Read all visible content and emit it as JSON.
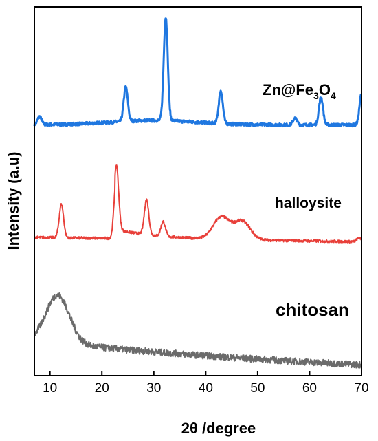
{
  "chart_data": {
    "type": "line",
    "title": "",
    "xlabel": "2θ /degree",
    "ylabel": "Intensity (a.u)",
    "xlim": [
      7,
      70
    ],
    "xticks": [
      10,
      20,
      30,
      40,
      50,
      60,
      70
    ],
    "y_ticks_shown": false,
    "grid": false,
    "legend": "none",
    "series": [
      {
        "name": "Zn@Fe3O4",
        "label_main": "Zn@Fe",
        "label_sub1": "3",
        "label_mid": "O",
        "label_sub2": "4",
        "color": "#1f77e0",
        "baseline": 0.68,
        "peaks": [
          {
            "x": 8.0,
            "h": 0.022
          },
          {
            "x": 24.6,
            "h": 0.093
          },
          {
            "x": 32.3,
            "h": 0.28
          },
          {
            "x": 42.9,
            "h": 0.088
          },
          {
            "x": 57.2,
            "h": 0.018
          },
          {
            "x": 62.2,
            "h": 0.075
          },
          {
            "x": 70.0,
            "h": 0.085
          }
        ]
      },
      {
        "name": "halloysite",
        "label_main": "halloysite",
        "color": "#e8403a",
        "baseline": 0.375,
        "peaks": [
          {
            "x": 12.2,
            "h": 0.09
          },
          {
            "x": 22.8,
            "h": 0.175
          },
          {
            "x": 28.6,
            "h": 0.095
          },
          {
            "x": 31.8,
            "h": 0.04
          },
          {
            "x": 43.0,
            "h": 0.06
          },
          {
            "x": 47.0,
            "h": 0.05
          },
          {
            "x": 69.5,
            "h": 0.01
          }
        ]
      },
      {
        "name": "chitosan",
        "label_main": "chitosan",
        "color": "#6b6b6b",
        "baseline": 0.05,
        "peaks": [
          {
            "x": 11.5,
            "h": 0.13
          }
        ]
      }
    ]
  }
}
